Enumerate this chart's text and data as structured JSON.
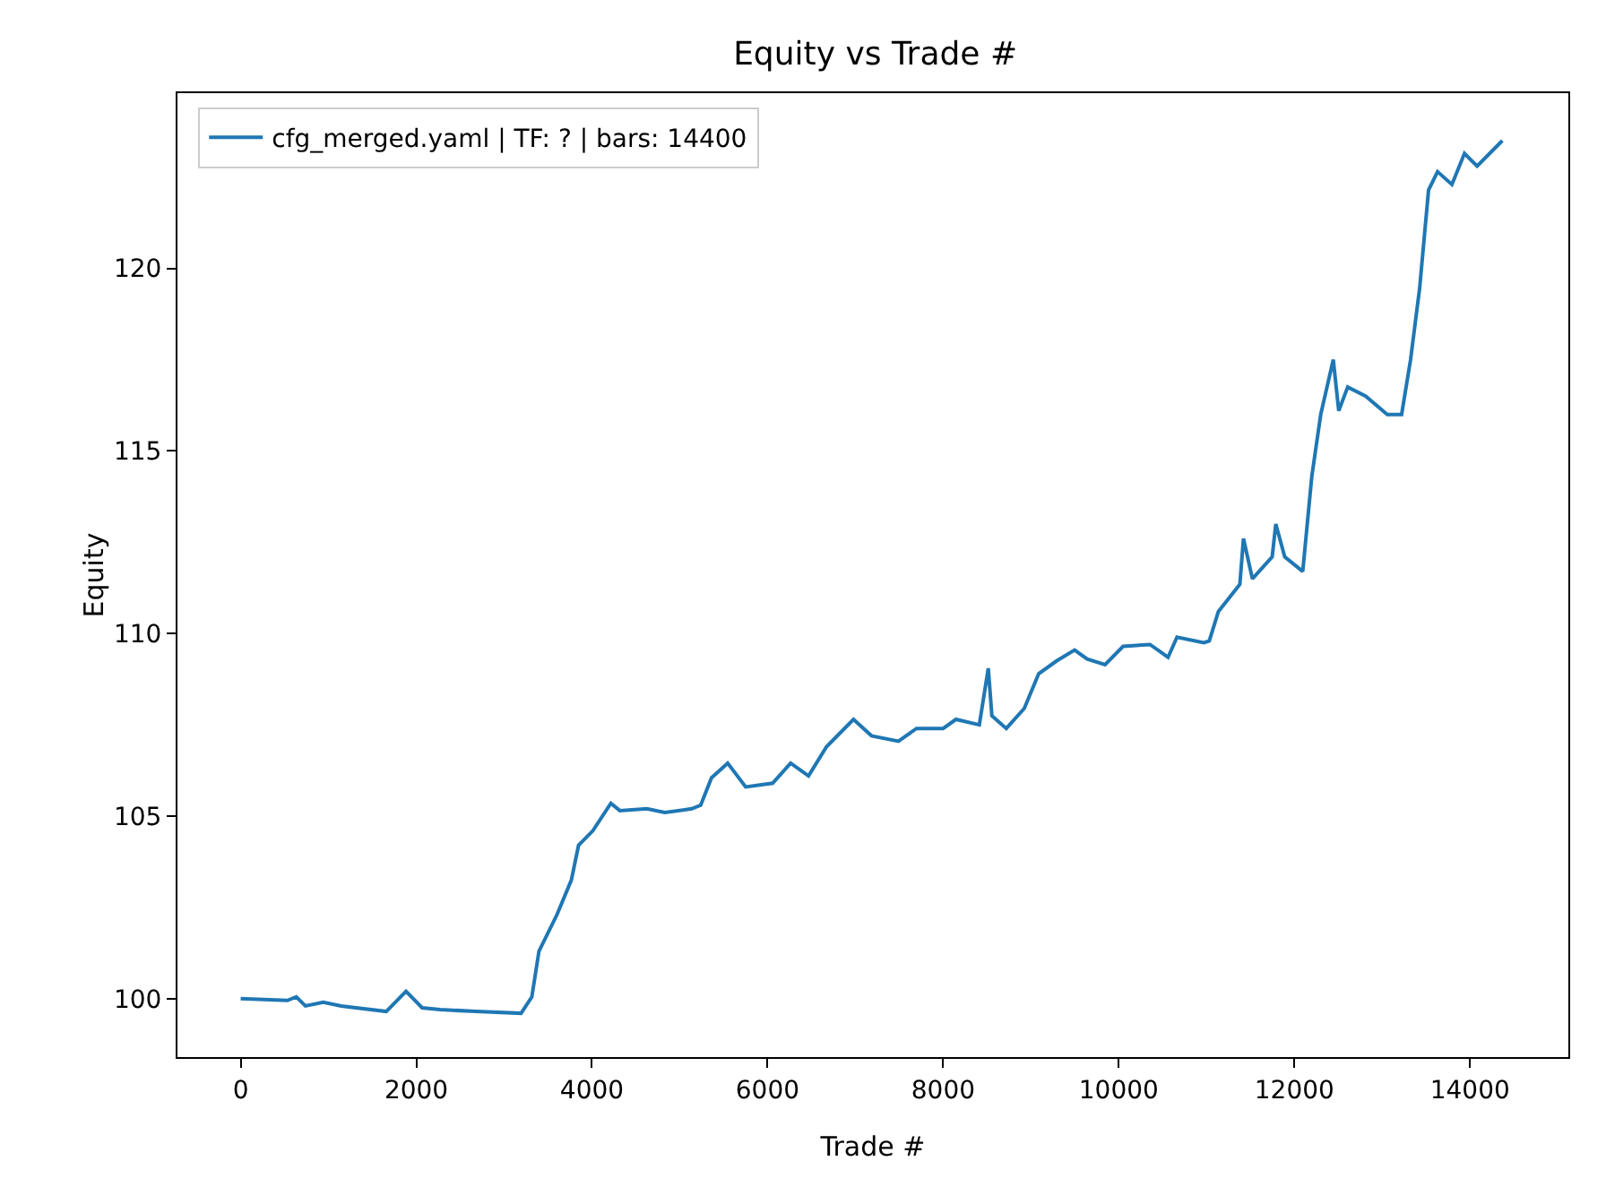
{
  "chart_data": {
    "type": "line",
    "title": "Equity vs Trade #",
    "xlabel": "Trade #",
    "ylabel": "Equity",
    "xlim": [
      -720,
      15120
    ],
    "xticks": [
      0,
      2000,
      4000,
      6000,
      8000,
      10000,
      12000,
      14000
    ],
    "ylim": [
      98.4,
      124.8
    ],
    "yticks": [
      100,
      105,
      110,
      115,
      120
    ],
    "grid": false,
    "legend": "top left",
    "marker": "none",
    "line_style": "solid",
    "series": [
      {
        "name": "cfg_merged.yaml | TF: ? | bars: 14400",
        "color": "#1f77b4",
        "x": [
          0,
          532,
          634,
          737,
          941,
          1146,
          1658,
          1883,
          2067,
          2272,
          2681,
          3193,
          3316,
          3397,
          3602,
          3766,
          3848,
          4011,
          4216,
          4318,
          4625,
          4830,
          5137,
          5239,
          5362,
          5546,
          5751,
          6058,
          6263,
          6467,
          6672,
          6979,
          7184,
          7491,
          7696,
          8000,
          8146,
          8412,
          8514,
          8555,
          8719,
          8924,
          9088,
          9292,
          9497,
          9640,
          9844,
          10049,
          10356,
          10561,
          10663,
          10970,
          11031,
          11134,
          11379,
          11420,
          11522,
          11747,
          11788,
          11890,
          12095,
          12198,
          12300,
          12443,
          12505,
          12607,
          12812,
          13058,
          13221,
          13323,
          13426,
          13528,
          13630,
          13794,
          13937,
          14081,
          14368
        ],
        "values": [
          100.0,
          99.95,
          100.05,
          99.8,
          99.9,
          99.8,
          99.65,
          100.2,
          99.75,
          99.7,
          99.65,
          99.6,
          100.05,
          101.3,
          102.3,
          103.25,
          104.2,
          104.6,
          105.35,
          105.15,
          105.2,
          105.1,
          105.2,
          105.3,
          106.05,
          106.45,
          105.8,
          105.9,
          106.45,
          106.1,
          106.9,
          107.65,
          107.2,
          107.05,
          107.4,
          107.4,
          107.65,
          107.5,
          109.05,
          107.75,
          107.4,
          107.95,
          108.9,
          109.25,
          109.55,
          109.3,
          109.15,
          109.65,
          109.7,
          109.35,
          109.9,
          109.75,
          109.8,
          110.6,
          111.35,
          112.6,
          111.5,
          112.1,
          113.0,
          112.1,
          111.7,
          114.3,
          116.0,
          117.5,
          116.1,
          116.75,
          116.5,
          116.0,
          116.0,
          117.5,
          119.45,
          122.15,
          122.65,
          122.3,
          123.15,
          122.8,
          123.5
        ]
      }
    ]
  }
}
